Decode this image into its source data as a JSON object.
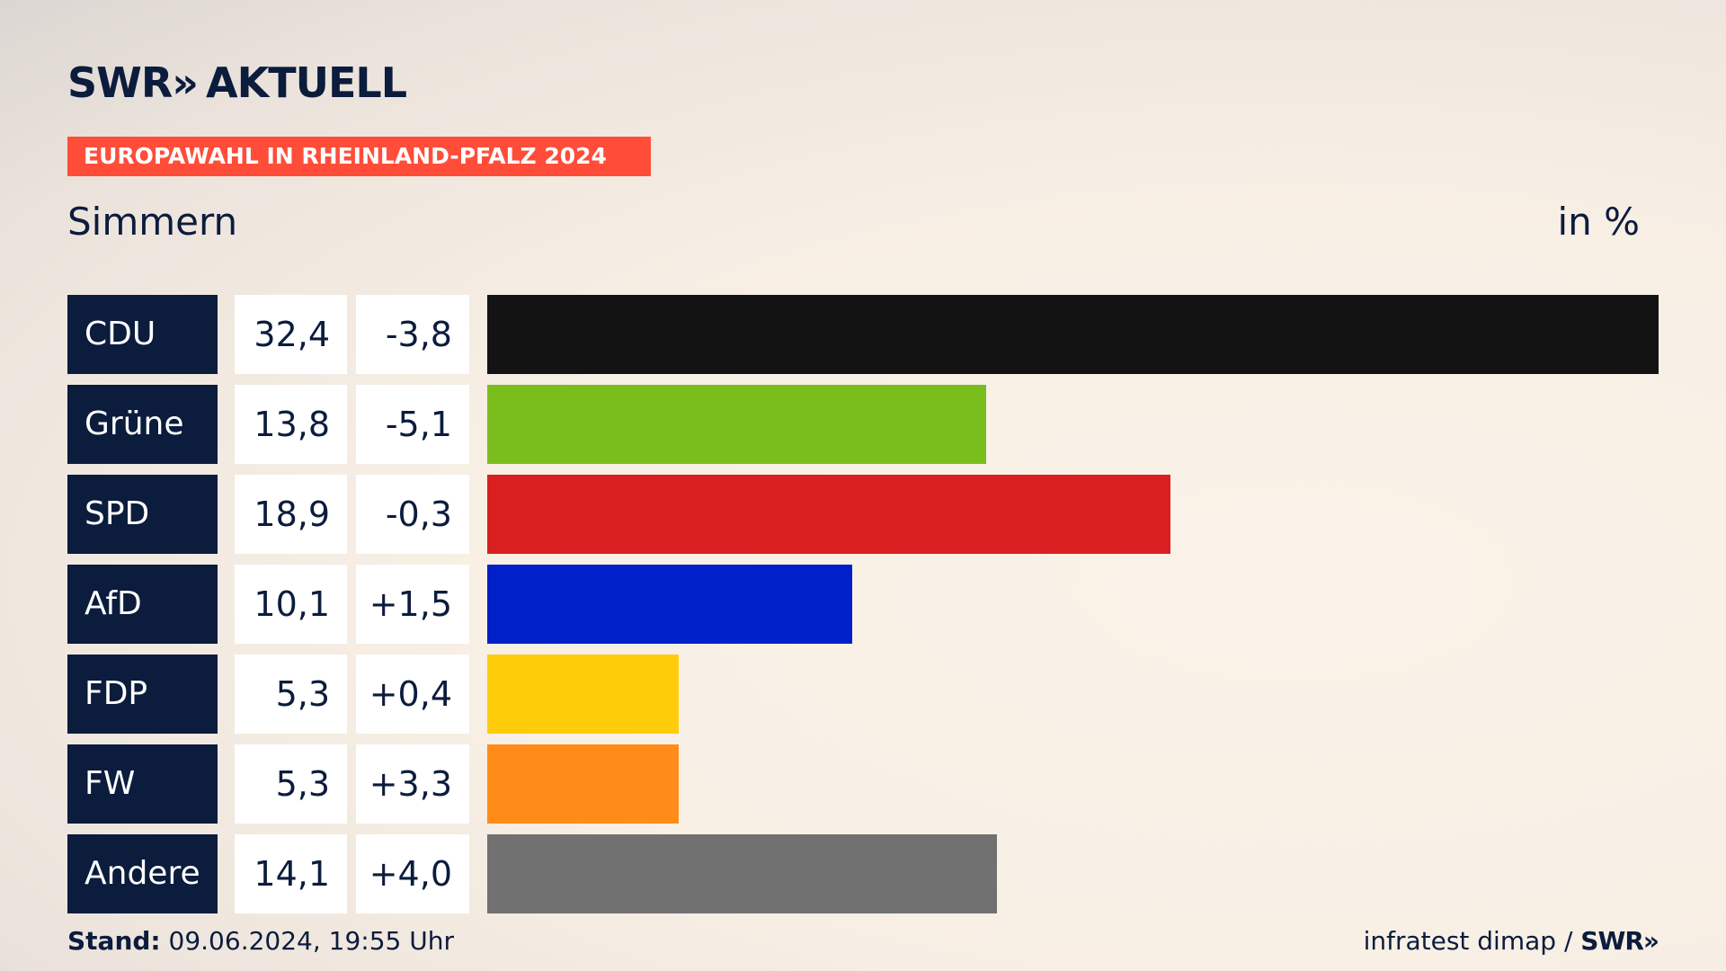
{
  "brand": {
    "name": "SWR",
    "chevrons": "»",
    "section": "AKTUELL"
  },
  "header": {
    "election": "EUROPAWAHL IN RHEINLAND-PFALZ 2024",
    "place": "Simmern",
    "unit": "in %"
  },
  "chart_data": {
    "type": "bar",
    "orientation": "horizontal",
    "categories": [
      "CDU",
      "Grüne",
      "SPD",
      "AfD",
      "FDP",
      "FW",
      "Andere"
    ],
    "values": [
      32.4,
      13.8,
      18.9,
      10.1,
      5.3,
      5.3,
      14.1
    ],
    "value_labels": [
      "32,4",
      "13,8",
      "18,9",
      "10,1",
      "5,3",
      "5,3",
      "14,1"
    ],
    "diff_labels": [
      "-3,8",
      "-5,1",
      "-0,3",
      "+1,5",
      "+0,4",
      "+3,3",
      "+4,0"
    ],
    "colors": [
      "#131313",
      "#7abe1d",
      "#d91f1f",
      "#0021c9",
      "#ffcc0a",
      "#ff8c18",
      "#717171"
    ],
    "xlim": [
      0,
      32.4
    ]
  },
  "footer": {
    "stand_label": "Stand:",
    "stand_value": "09.06.2024, 19:55 Uhr",
    "source": "infratest dimap / ",
    "source_brand": "SWR",
    "source_chevrons": "»"
  }
}
